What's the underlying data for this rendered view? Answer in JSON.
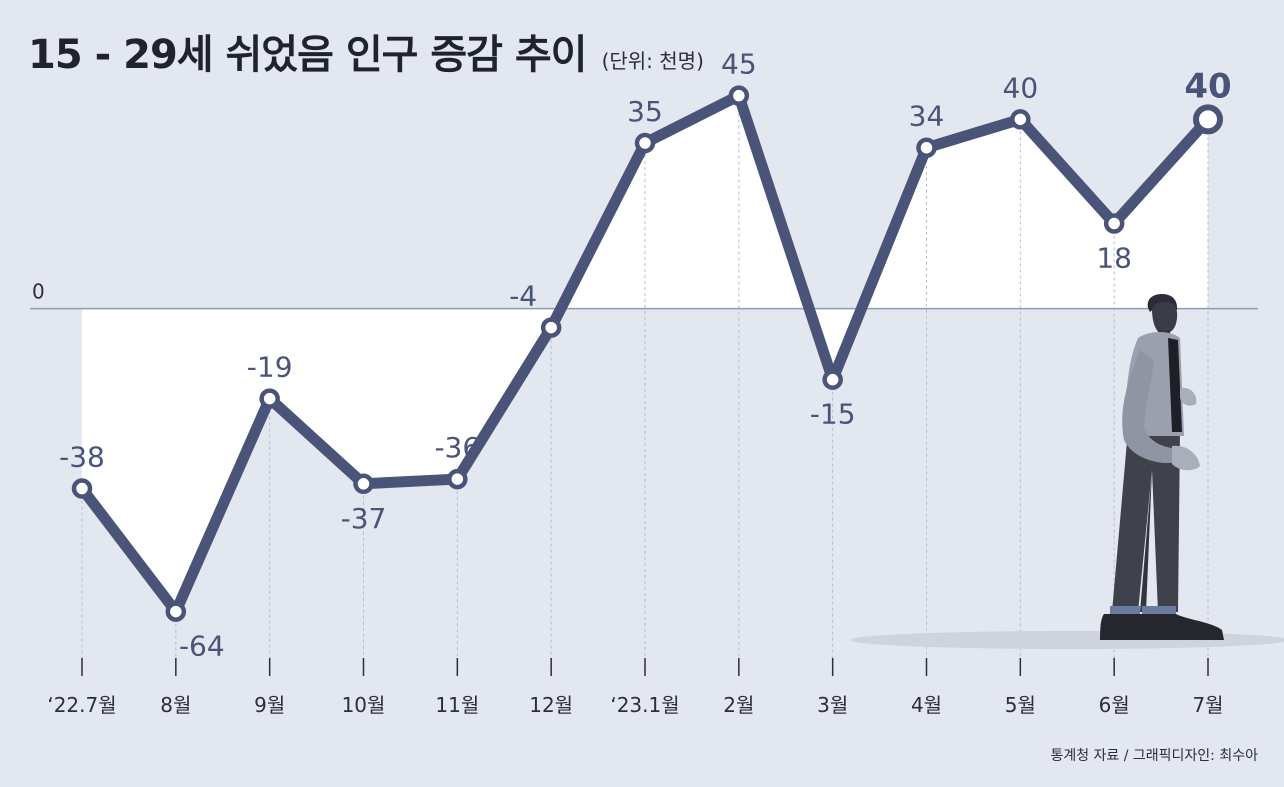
{
  "title": "15 - 29세 쉬었음 인구 증감 추이",
  "unit_note": "(단위: 천명)",
  "source": "통계청 자료 / 그래픽디자인: 최수아",
  "colors": {
    "background": "#e3e7ef",
    "line": "#4a5478",
    "label": "#4a5478",
    "positive_fill": "#ffffff",
    "zero_line": "#8f9ab3",
    "guide": "#b6bccb"
  },
  "illustration": "standing-man-illustration",
  "chart_data": {
    "type": "line",
    "title": "15 - 29세 쉬었음 인구 증감 추이",
    "ylabel": "(단위: 천명)",
    "zero_label": "0",
    "ylim": [
      -70,
      50
    ],
    "grid": false,
    "categories": [
      "‘22.7월",
      "8월",
      "9월",
      "10월",
      "11월",
      "12월",
      "‘23.1월",
      "2월",
      "3월",
      "4월",
      "5월",
      "6월",
      "7월"
    ],
    "series": [
      {
        "values": [
          -38,
          -64,
          -19,
          -37,
          -36,
          -4,
          35,
          45,
          -15,
          34,
          40,
          18,
          40
        ]
      }
    ],
    "value_labels": [
      "-38",
      "-64",
      "-19",
      "-37",
      "-36",
      "-4",
      "35",
      "45",
      "-15",
      "34",
      "40",
      "18",
      "40"
    ],
    "highlight_last": true
  }
}
